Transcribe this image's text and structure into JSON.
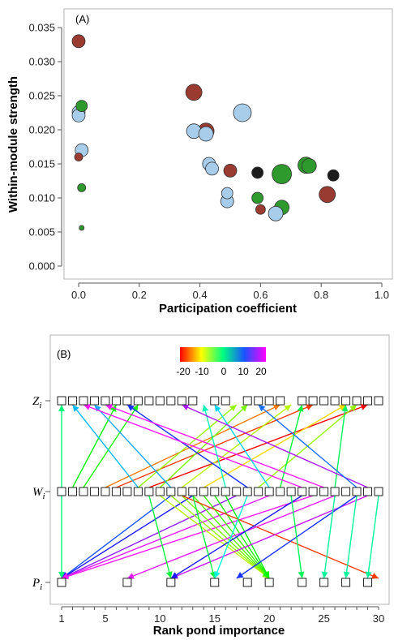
{
  "chart_data": [
    {
      "type": "scatter",
      "panel_label": "(A)",
      "xlabel": "Participation coefficient",
      "ylabel": "Within-module strength",
      "xlim": [
        -0.05,
        1.05
      ],
      "ylim": [
        -0.003,
        0.038
      ],
      "xticks": [
        "0.0",
        "0.2",
        "0.4",
        "0.6",
        "0.8",
        "1.0"
      ],
      "yticks": [
        "0.000",
        "0.005",
        "0.010",
        "0.015",
        "0.020",
        "0.025",
        "0.030",
        "0.035"
      ],
      "colors": {
        "red": "#9a3b32",
        "green": "#2e9a2e",
        "blue": "#a8cdea",
        "black": "#1c1c1c"
      },
      "points": [
        {
          "x": 0.0,
          "y": 0.033,
          "c": "red",
          "s": 8
        },
        {
          "x": 0.01,
          "y": 0.0235,
          "c": "green",
          "s": 7
        },
        {
          "x": 0.0,
          "y": 0.0226,
          "c": "blue",
          "s": 8
        },
        {
          "x": 0.0,
          "y": 0.0221,
          "c": "blue",
          "s": 8
        },
        {
          "x": 0.01,
          "y": 0.017,
          "c": "blue",
          "s": 8
        },
        {
          "x": 0.0,
          "y": 0.016,
          "c": "red",
          "s": 5
        },
        {
          "x": 0.01,
          "y": 0.0115,
          "c": "green",
          "s": 5
        },
        {
          "x": 0.01,
          "y": 0.0056,
          "c": "green",
          "s": 3
        },
        {
          "x": 0.38,
          "y": 0.0255,
          "c": "red",
          "s": 10
        },
        {
          "x": 0.38,
          "y": 0.0198,
          "c": "blue",
          "s": 9
        },
        {
          "x": 0.42,
          "y": 0.0198,
          "c": "red",
          "s": 10
        },
        {
          "x": 0.42,
          "y": 0.0194,
          "c": "blue",
          "s": 9
        },
        {
          "x": 0.54,
          "y": 0.0225,
          "c": "blue",
          "s": 11
        },
        {
          "x": 0.43,
          "y": 0.015,
          "c": "blue",
          "s": 8
        },
        {
          "x": 0.44,
          "y": 0.0143,
          "c": "blue",
          "s": 8
        },
        {
          "x": 0.5,
          "y": 0.014,
          "c": "red",
          "s": 8
        },
        {
          "x": 0.49,
          "y": 0.0107,
          "c": "blue",
          "s": 7
        },
        {
          "x": 0.49,
          "y": 0.0095,
          "c": "blue",
          "s": 8
        },
        {
          "x": 0.59,
          "y": 0.0137,
          "c": "black",
          "s": 7
        },
        {
          "x": 0.67,
          "y": 0.0135,
          "c": "green",
          "s": 12
        },
        {
          "x": 0.75,
          "y": 0.0148,
          "c": "green",
          "s": 10
        },
        {
          "x": 0.76,
          "y": 0.0147,
          "c": "green",
          "s": 9
        },
        {
          "x": 0.84,
          "y": 0.0133,
          "c": "black",
          "s": 7
        },
        {
          "x": 0.59,
          "y": 0.01,
          "c": "green",
          "s": 7
        },
        {
          "x": 0.6,
          "y": 0.0083,
          "c": "red",
          "s": 6
        },
        {
          "x": 0.67,
          "y": 0.0086,
          "c": "green",
          "s": 9
        },
        {
          "x": 0.65,
          "y": 0.0077,
          "c": "blue",
          "s": 9
        },
        {
          "x": 0.82,
          "y": 0.0105,
          "c": "red",
          "s": 10
        }
      ]
    },
    {
      "type": "rank-flow",
      "panel_label": "(B)",
      "xlabel": "Rank pond importance",
      "xlim": [
        1,
        30
      ],
      "xticks": [
        1,
        2,
        3,
        4,
        5,
        6,
        7,
        8,
        9,
        10,
        11,
        12,
        13,
        14,
        15,
        16,
        17,
        18,
        19,
        20,
        21,
        22,
        23,
        24,
        25,
        26,
        27,
        28,
        29,
        30
      ],
      "xtick_labels": [
        "1",
        "5",
        "10",
        "15",
        "20",
        "25",
        "30"
      ],
      "row_labels": {
        "z": "Z",
        "w": "W",
        "p": "P",
        "sub": "i"
      },
      "colorbar": {
        "labels": [
          "-20",
          "-10",
          "0",
          "10",
          "20"
        ],
        "min": -20,
        "max": 20
      },
      "boxes": {
        "z": [
          1,
          2,
          3,
          4,
          5,
          6,
          7,
          8,
          9,
          10,
          11,
          12,
          13,
          15,
          16,
          18,
          19,
          20,
          21,
          23,
          24,
          25,
          26,
          27,
          28,
          29,
          30
        ],
        "w": [
          1,
          2,
          3,
          4,
          5,
          6,
          7,
          8,
          9,
          10,
          11,
          12,
          13,
          14,
          15,
          16,
          17,
          18,
          19,
          20,
          21,
          22,
          23,
          24,
          25,
          26,
          27,
          28,
          29,
          30
        ],
        "p": [
          1,
          7,
          11,
          15,
          18,
          20,
          23,
          25,
          27,
          29
        ]
      },
      "links_w_to_z": [
        {
          "w": 1,
          "z": 1,
          "v": 0
        },
        {
          "w": 5,
          "z": 21,
          "v": -16
        },
        {
          "w": 6,
          "z": 24,
          "v": -18
        },
        {
          "w": 9,
          "z": 29,
          "v": -20
        },
        {
          "w": 12,
          "z": 22,
          "v": -10
        },
        {
          "w": 14,
          "z": 27,
          "v": -13
        },
        {
          "w": 19,
          "z": 28,
          "v": -9
        },
        {
          "w": 2,
          "z": 6,
          "v": -4
        },
        {
          "w": 3,
          "z": 8,
          "v": -5
        },
        {
          "w": 8,
          "z": 17,
          "v": -9
        },
        {
          "w": 10,
          "z": 18,
          "v": -8
        },
        {
          "w": 21,
          "z": 23,
          "v": -2
        },
        {
          "w": 26,
          "z": 27,
          "v": -1
        },
        {
          "w": 8,
          "z": 2,
          "v": 6
        },
        {
          "w": 11,
          "z": 4,
          "v": 7
        },
        {
          "w": 18,
          "z": 7,
          "v": 11
        },
        {
          "w": 23,
          "z": 3,
          "v": 20
        },
        {
          "w": 25,
          "z": 5,
          "v": 20
        },
        {
          "w": 16,
          "z": 14,
          "v": 2
        },
        {
          "w": 20,
          "z": 15,
          "v": 5
        },
        {
          "w": 29,
          "z": 12,
          "v": 17
        },
        {
          "w": 28,
          "z": 19,
          "v": 9
        }
      ],
      "links_w_to_p": [
        {
          "w": 1,
          "p": 1,
          "v": 0
        },
        {
          "w": 11,
          "p": 1,
          "v": 10
        },
        {
          "w": 13,
          "p": 1,
          "v": 12
        },
        {
          "w": 17,
          "p": 1,
          "v": 16
        },
        {
          "w": 20,
          "p": 1,
          "v": 19
        },
        {
          "w": 24,
          "p": 1,
          "v": 20
        },
        {
          "w": 10,
          "p": 20,
          "v": -10
        },
        {
          "w": 11,
          "p": 20,
          "v": -9
        },
        {
          "w": 12,
          "p": 20,
          "v": -8
        },
        {
          "w": 13,
          "p": 20,
          "v": -7
        },
        {
          "w": 14,
          "p": 20,
          "v": -6
        },
        {
          "w": 15,
          "p": 20,
          "v": -5
        },
        {
          "w": 16,
          "p": 20,
          "v": -4
        },
        {
          "w": 12,
          "p": 30,
          "v": -18
        },
        {
          "w": 26,
          "p": 7,
          "v": 19
        },
        {
          "w": 29,
          "p": 11,
          "v": 18
        },
        {
          "w": 23,
          "p": 11,
          "v": 12
        },
        {
          "w": 28,
          "p": 17,
          "v": 11
        },
        {
          "w": 13,
          "p": 15,
          "v": -2
        },
        {
          "w": 18,
          "p": 15,
          "v": 3
        },
        {
          "w": 22,
          "p": 23,
          "v": -1
        },
        {
          "w": 26,
          "p": 25,
          "v": 1
        },
        {
          "w": 28,
          "p": 27,
          "v": 1
        },
        {
          "w": 30,
          "p": 29,
          "v": 1
        },
        {
          "w": 9,
          "p": 11,
          "v": -2
        }
      ]
    }
  ]
}
